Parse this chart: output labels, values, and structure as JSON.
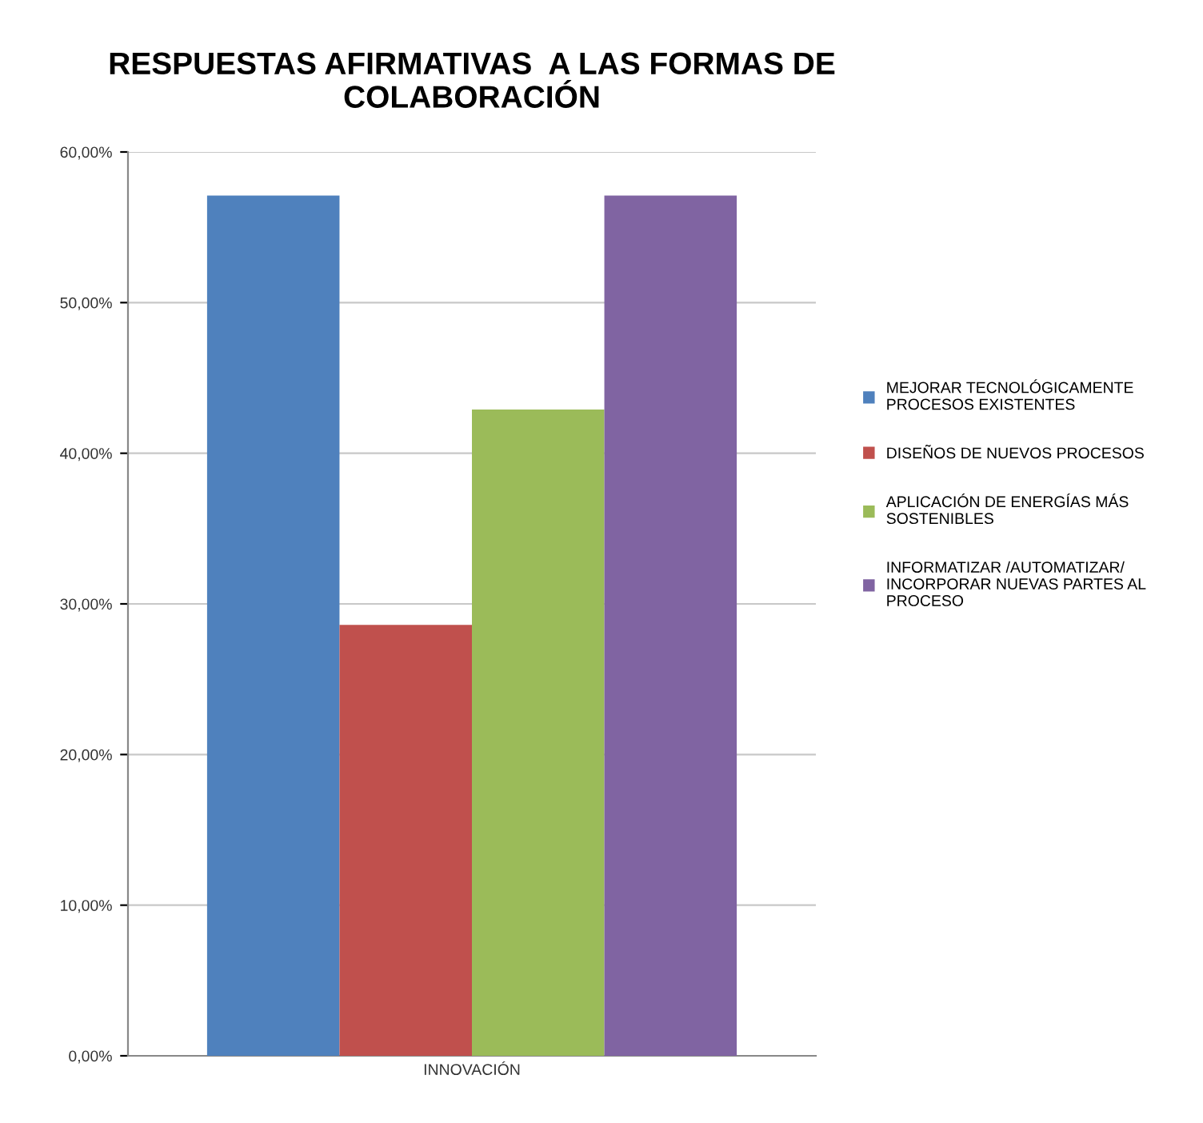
{
  "chart_data": {
    "type": "bar",
    "title": "RESPUESTAS AFIRMATIVAS  A LAS FORMAS DE COLABORACIÓN",
    "categories": [
      "INNOVACIÓN"
    ],
    "series": [
      {
        "name": "MEJORAR TECNOLÓGICAMENTE\nPROCESOS EXISTENTES",
        "color": "#4f81bd",
        "values": [
          57.1
        ]
      },
      {
        "name": "DISEÑOS DE NUEVOS PROCESOS",
        "color": "#c0504d",
        "values": [
          28.6
        ]
      },
      {
        "name": "APLICACIÓN DE ENERGÍAS MÁS\nSOSTENIBLES",
        "color": "#9bbb59",
        "values": [
          42.9
        ]
      },
      {
        "name": "INFORMATIZAR /AUTOMATIZAR/\nINCORPORAR NUEVAS PARTES AL\nPROCESO",
        "color": "#8064a2",
        "values": [
          57.1
        ]
      }
    ],
    "ylim": [
      0,
      60
    ],
    "yticks": [
      {
        "value": 0,
        "label": "0,00%"
      },
      {
        "value": 10,
        "label": "10,00%"
      },
      {
        "value": 20,
        "label": "20,00%"
      },
      {
        "value": 30,
        "label": "30,00%"
      },
      {
        "value": 40,
        "label": "40,00%"
      },
      {
        "value": 50,
        "label": "50,00%"
      },
      {
        "value": 60,
        "label": "60,00%"
      }
    ],
    "grid": "y",
    "legend": "right"
  }
}
